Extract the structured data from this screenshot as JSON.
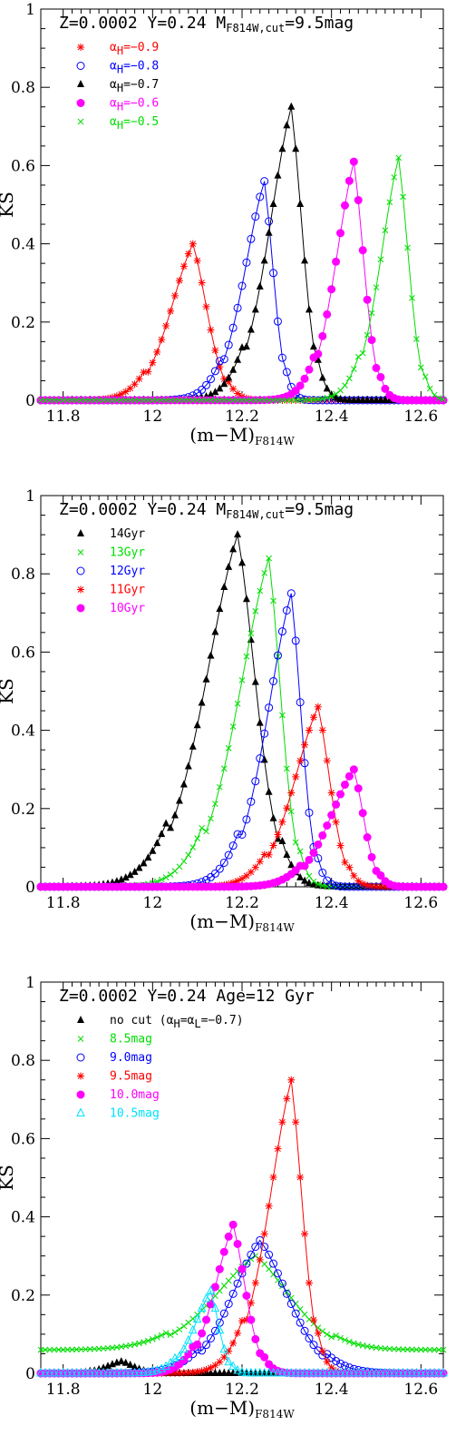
{
  "chart_data": [
    {
      "type": "line",
      "title": "Z=0.0002 Y=0.24 M",
      "title_sub": "F814W,cut",
      "title_tail": "=9.5mag",
      "xlabel": "(m−M)",
      "xlabel_sub": "F814W",
      "ylabel": "KS",
      "xlim": [
        11.75,
        12.65
      ],
      "ylim": [
        0,
        1
      ],
      "xticks": [
        "11.8",
        "12",
        "12.2",
        "12.4",
        "12.6"
      ],
      "yticks": [
        "0",
        "0.2",
        "0.4",
        "0.6",
        "0.8",
        "1"
      ],
      "legend_position": "top-left",
      "series": [
        {
          "name": "α",
          "name_sub": "H",
          "name_tail": "=−0.9",
          "color": "#ff0000",
          "marker": "asterisk",
          "peak_x": 12.09,
          "peak_y": 0.4,
          "width_left": 0.11,
          "width_right": 0.07
        },
        {
          "name": "α",
          "name_sub": "H",
          "name_tail": "=−0.8",
          "color": "#0000ff",
          "marker": "circle-open",
          "peak_x": 12.25,
          "peak_y": 0.56,
          "width_left": 0.1,
          "width_right": 0.045
        },
        {
          "name": "α",
          "name_sub": "H",
          "name_tail": "=−0.7",
          "color": "#000000",
          "marker": "triangle-filled",
          "peak_x": 12.31,
          "peak_y": 0.75,
          "width_left": 0.11,
          "width_right": 0.055
        },
        {
          "name": "α",
          "name_sub": "H",
          "name_tail": "=−0.6",
          "color": "#ff00ff",
          "marker": "circle-filled",
          "peak_x": 12.45,
          "peak_y": 0.61,
          "width_left": 0.09,
          "width_right": 0.05
        },
        {
          "name": "α",
          "name_sub": "H",
          "name_tail": "=−0.5",
          "color": "#00dd00",
          "marker": "cross",
          "peak_x": 12.55,
          "peak_y": 0.62,
          "width_left": 0.09,
          "width_right": 0.05
        }
      ]
    },
    {
      "type": "line",
      "title": "Z=0.0002 Y=0.24 M",
      "title_sub": "F814W,cut",
      "title_tail": "=9.5mag",
      "xlabel": "(m−M)",
      "xlabel_sub": "F814W",
      "ylabel": "KS",
      "xlim": [
        11.75,
        12.65
      ],
      "ylim": [
        0,
        1
      ],
      "xticks": [
        "11.8",
        "12",
        "12.2",
        "12.4",
        "12.6"
      ],
      "yticks": [
        "0",
        "0.2",
        "0.4",
        "0.6",
        "0.8",
        "1"
      ],
      "legend_position": "top-left",
      "series": [
        {
          "name": "14Gyr",
          "color": "#000000",
          "marker": "triangle-filled",
          "peak_x": 12.19,
          "peak_y": 0.9,
          "width_left": 0.16,
          "width_right": 0.09
        },
        {
          "name": "13Gyr",
          "color": "#00dd00",
          "marker": "cross",
          "peak_x": 12.26,
          "peak_y": 0.84,
          "width_left": 0.15,
          "width_right": 0.06
        },
        {
          "name": "12Gyr",
          "color": "#0000ff",
          "marker": "circle-open",
          "peak_x": 12.31,
          "peak_y": 0.75,
          "width_left": 0.12,
          "width_right": 0.05
        },
        {
          "name": "11Gyr",
          "color": "#ff0000",
          "marker": "asterisk",
          "peak_x": 12.37,
          "peak_y": 0.46,
          "width_left": 0.12,
          "width_right": 0.06
        },
        {
          "name": "10Gyr",
          "color": "#ff00ff",
          "marker": "circle-filled",
          "peak_x": 12.45,
          "peak_y": 0.3,
          "width_left": 0.12,
          "width_right": 0.05
        }
      ]
    },
    {
      "type": "line",
      "title": "Z=0.0002 Y=0.24   Age=12 Gyr",
      "xlabel": "(m−M)",
      "xlabel_sub": "F814W",
      "ylabel": "KS",
      "xlim": [
        11.75,
        12.65
      ],
      "ylim": [
        0,
        1
      ],
      "xticks": [
        "11.8",
        "12",
        "12.2",
        "12.4",
        "12.6"
      ],
      "yticks": [
        "0",
        "0.2",
        "0.4",
        "0.6",
        "0.8",
        "1"
      ],
      "legend_position": "top-left",
      "series": [
        {
          "name": "no cut (α",
          "name_sub": "H",
          "name_tail": "=α",
          "name_sub2": "L",
          "name_tail2": "=−0.7)",
          "color": "#000000",
          "marker": "triangle-filled",
          "peak_x": 11.93,
          "peak_y": 0.03,
          "width_left": 0.07,
          "width_right": 0.06
        },
        {
          "name": "8.5mag",
          "color": "#00dd00",
          "marker": "cross",
          "peak_x": 12.23,
          "peak_y": 0.3,
          "width_left": 0.2,
          "width_right": 0.17,
          "floor": 0.06
        },
        {
          "name": "9.0mag",
          "color": "#0000ff",
          "marker": "circle-open",
          "peak_x": 12.24,
          "peak_y": 0.34,
          "width_left": 0.14,
          "width_right": 0.14
        },
        {
          "name": "9.5mag",
          "color": "#ff0000",
          "marker": "asterisk",
          "peak_x": 12.31,
          "peak_y": 0.75,
          "width_left": 0.11,
          "width_right": 0.055
        },
        {
          "name": "10.0mag",
          "color": "#ff00ff",
          "marker": "circle-filled",
          "peak_x": 12.18,
          "peak_y": 0.38,
          "width_left": 0.09,
          "width_right": 0.06
        },
        {
          "name": "10.5mag",
          "color": "#00e0ff",
          "marker": "triangle-open",
          "peak_x": 12.13,
          "peak_y": 0.21,
          "width_left": 0.08,
          "width_right": 0.04
        }
      ]
    }
  ]
}
